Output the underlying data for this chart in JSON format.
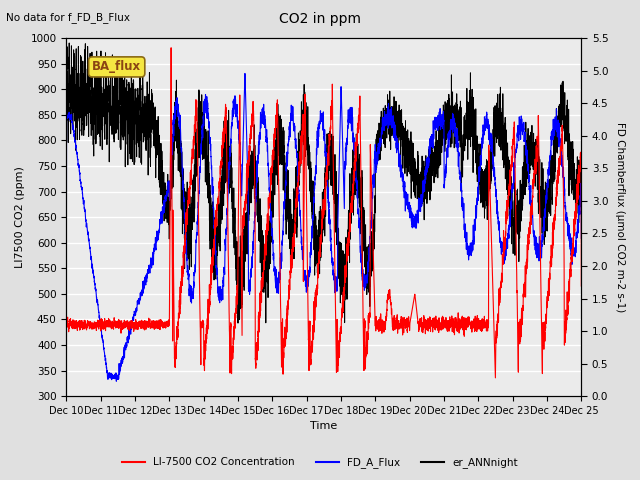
{
  "title": "CO2 in ppm",
  "top_left_text": "No data for f_FD_B_Flux",
  "ba_flux_label": "BA_flux",
  "xlabel": "Time",
  "ylabel_left": "LI7500 CO2 (ppm)",
  "ylabel_right": "FD Chamberflux (μmol CO2 m-2 s-1)",
  "ylim_left": [
    300,
    1000
  ],
  "ylim_right": [
    0.0,
    5.5
  ],
  "yticks_left": [
    300,
    350,
    400,
    450,
    500,
    550,
    600,
    650,
    700,
    750,
    800,
    850,
    900,
    950,
    1000
  ],
  "yticks_right": [
    0.0,
    0.5,
    1.0,
    1.5,
    2.0,
    2.5,
    3.0,
    3.5,
    4.0,
    4.5,
    5.0,
    5.5
  ],
  "xtick_labels": [
    "Dec 10",
    "Dec 11",
    "Dec 12",
    "Dec 13",
    "Dec 14",
    "Dec 15",
    "Dec 16",
    "Dec 17",
    "Dec 18",
    "Dec 19",
    "Dec 20",
    "Dec 21",
    "Dec 22",
    "Dec 23",
    "Dec 24",
    "Dec 25"
  ],
  "legend_entries": [
    {
      "label": "LI-7500 CO2 Concentration",
      "color": "red",
      "lw": 1.5
    },
    {
      "label": "FD_A_Flux",
      "color": "blue",
      "lw": 1.5
    },
    {
      "label": "er_ANNnight",
      "color": "black",
      "lw": 1.5
    }
  ],
  "bg_color": "#e0e0e0",
  "plot_bg_color": "#ebebeb",
  "grid_color": "white",
  "n_points": 7200
}
